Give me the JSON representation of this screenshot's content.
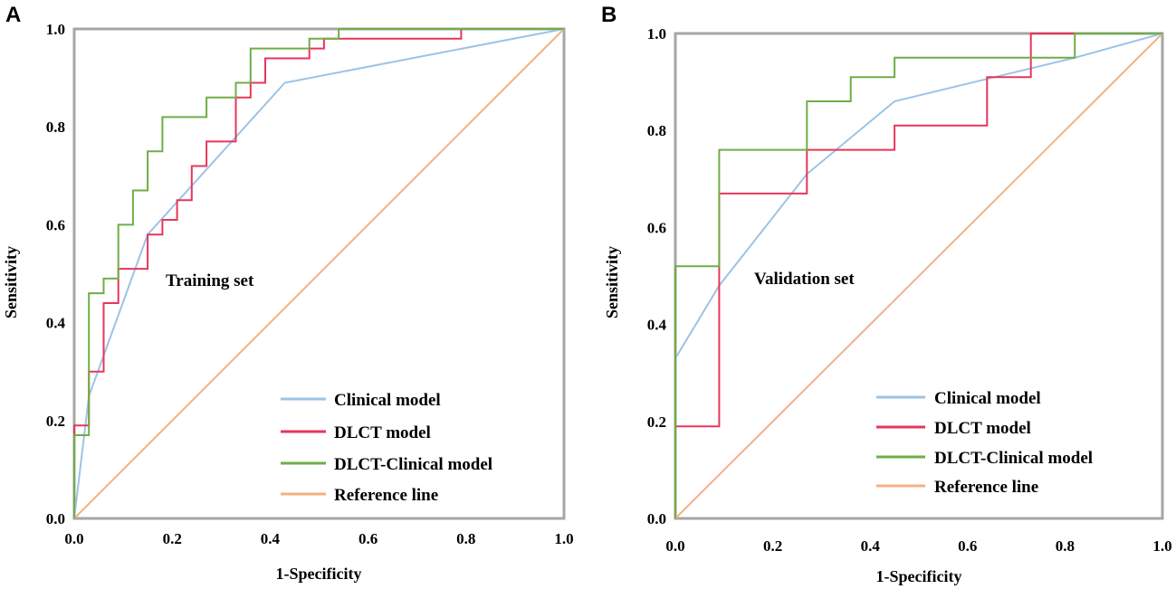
{
  "chart_data": [
    {
      "type": "line",
      "panel_label": "A",
      "title": "",
      "annotation": "Training set",
      "xlabel": "1-Specificity",
      "ylabel": "Sensitivity",
      "xlim": [
        0,
        1
      ],
      "ylim": [
        0,
        1
      ],
      "xticks": [
        "0.0",
        "0.2",
        "0.4",
        "0.6",
        "0.8",
        "1.0"
      ],
      "yticks": [
        "0.0",
        "0.2",
        "0.4",
        "0.6",
        "0.8",
        "1.0"
      ],
      "legend_position": "bottom-right",
      "series": [
        {
          "name": "Clinical model",
          "color": "#9dc3e6",
          "x": [
            0,
            0.03,
            0.15,
            0.43,
            1.0
          ],
          "y": [
            0,
            0.25,
            0.58,
            0.89,
            1.0
          ]
        },
        {
          "name": "DLCT model",
          "color": "#e8365a",
          "x": [
            0,
            0,
            0.03,
            0.03,
            0.06,
            0.06,
            0.09,
            0.09,
            0.15,
            0.15,
            0.18,
            0.18,
            0.21,
            0.21,
            0.24,
            0.24,
            0.27,
            0.27,
            0.33,
            0.33,
            0.36,
            0.36,
            0.39,
            0.39,
            0.45,
            0.45,
            0.48,
            0.48,
            0.51,
            0.51,
            0.54,
            0.54,
            0.79,
            0.79,
            1.0
          ],
          "y": [
            0,
            0.19,
            0.19,
            0.3,
            0.3,
            0.44,
            0.44,
            0.51,
            0.51,
            0.58,
            0.58,
            0.61,
            0.61,
            0.65,
            0.65,
            0.72,
            0.72,
            0.77,
            0.77,
            0.86,
            0.86,
            0.89,
            0.89,
            0.94,
            0.94,
            0.94,
            0.94,
            0.96,
            0.96,
            0.98,
            0.98,
            0.98,
            0.98,
            1.0,
            1.0
          ]
        },
        {
          "name": "DLCT-Clinical model",
          "color": "#70ad47",
          "x": [
            0,
            0,
            0.03,
            0.03,
            0.06,
            0.06,
            0.09,
            0.09,
            0.12,
            0.12,
            0.15,
            0.15,
            0.18,
            0.18,
            0.27,
            0.27,
            0.33,
            0.33,
            0.36,
            0.36,
            0.45,
            0.45,
            0.48,
            0.48,
            0.54,
            0.54,
            1.0
          ],
          "y": [
            0,
            0.17,
            0.17,
            0.46,
            0.46,
            0.49,
            0.49,
            0.6,
            0.6,
            0.67,
            0.67,
            0.75,
            0.75,
            0.82,
            0.82,
            0.86,
            0.86,
            0.89,
            0.89,
            0.96,
            0.96,
            0.96,
            0.96,
            0.98,
            0.98,
            1.0,
            1.0
          ]
        },
        {
          "name": "Reference line",
          "color": "#f4b183",
          "x": [
            0,
            1
          ],
          "y": [
            0,
            1
          ]
        }
      ]
    },
    {
      "type": "line",
      "panel_label": "B",
      "title": "",
      "annotation": "Validation set",
      "xlabel": "1-Specificity",
      "ylabel": "Sensitivity",
      "xlim": [
        0,
        1
      ],
      "ylim": [
        0,
        1
      ],
      "xticks": [
        "0.0",
        "0.2",
        "0.4",
        "0.6",
        "0.8",
        "1.0"
      ],
      "yticks": [
        "0.0",
        "0.2",
        "0.4",
        "0.6",
        "0.8",
        "1.0"
      ],
      "legend_position": "bottom-right",
      "series": [
        {
          "name": "Clinical model",
          "color": "#9dc3e6",
          "x": [
            0,
            0.09,
            0.27,
            0.45,
            0.82,
            1.0
          ],
          "y": [
            0.33,
            0.48,
            0.71,
            0.86,
            0.95,
            1.0
          ]
        },
        {
          "name": "DLCT model",
          "color": "#e8365a",
          "x": [
            0,
            0,
            0.09,
            0.09,
            0.27,
            0.27,
            0.45,
            0.45,
            0.64,
            0.64,
            0.73,
            0.73,
            0.82,
            0.82,
            1.0
          ],
          "y": [
            0,
            0.19,
            0.19,
            0.67,
            0.67,
            0.76,
            0.76,
            0.81,
            0.81,
            0.91,
            0.91,
            1.0,
            1.0,
            1.0,
            1.0
          ]
        },
        {
          "name": "DLCT-Clinical model",
          "color": "#70ad47",
          "x": [
            0,
            0,
            0.09,
            0.09,
            0.27,
            0.27,
            0.36,
            0.36,
            0.45,
            0.45,
            0.82,
            0.82,
            1.0
          ],
          "y": [
            0,
            0.52,
            0.52,
            0.76,
            0.76,
            0.86,
            0.86,
            0.91,
            0.91,
            0.95,
            0.95,
            1.0,
            1.0
          ]
        },
        {
          "name": "Reference line",
          "color": "#f4b183",
          "x": [
            0,
            1
          ],
          "y": [
            0,
            1
          ]
        }
      ]
    }
  ]
}
